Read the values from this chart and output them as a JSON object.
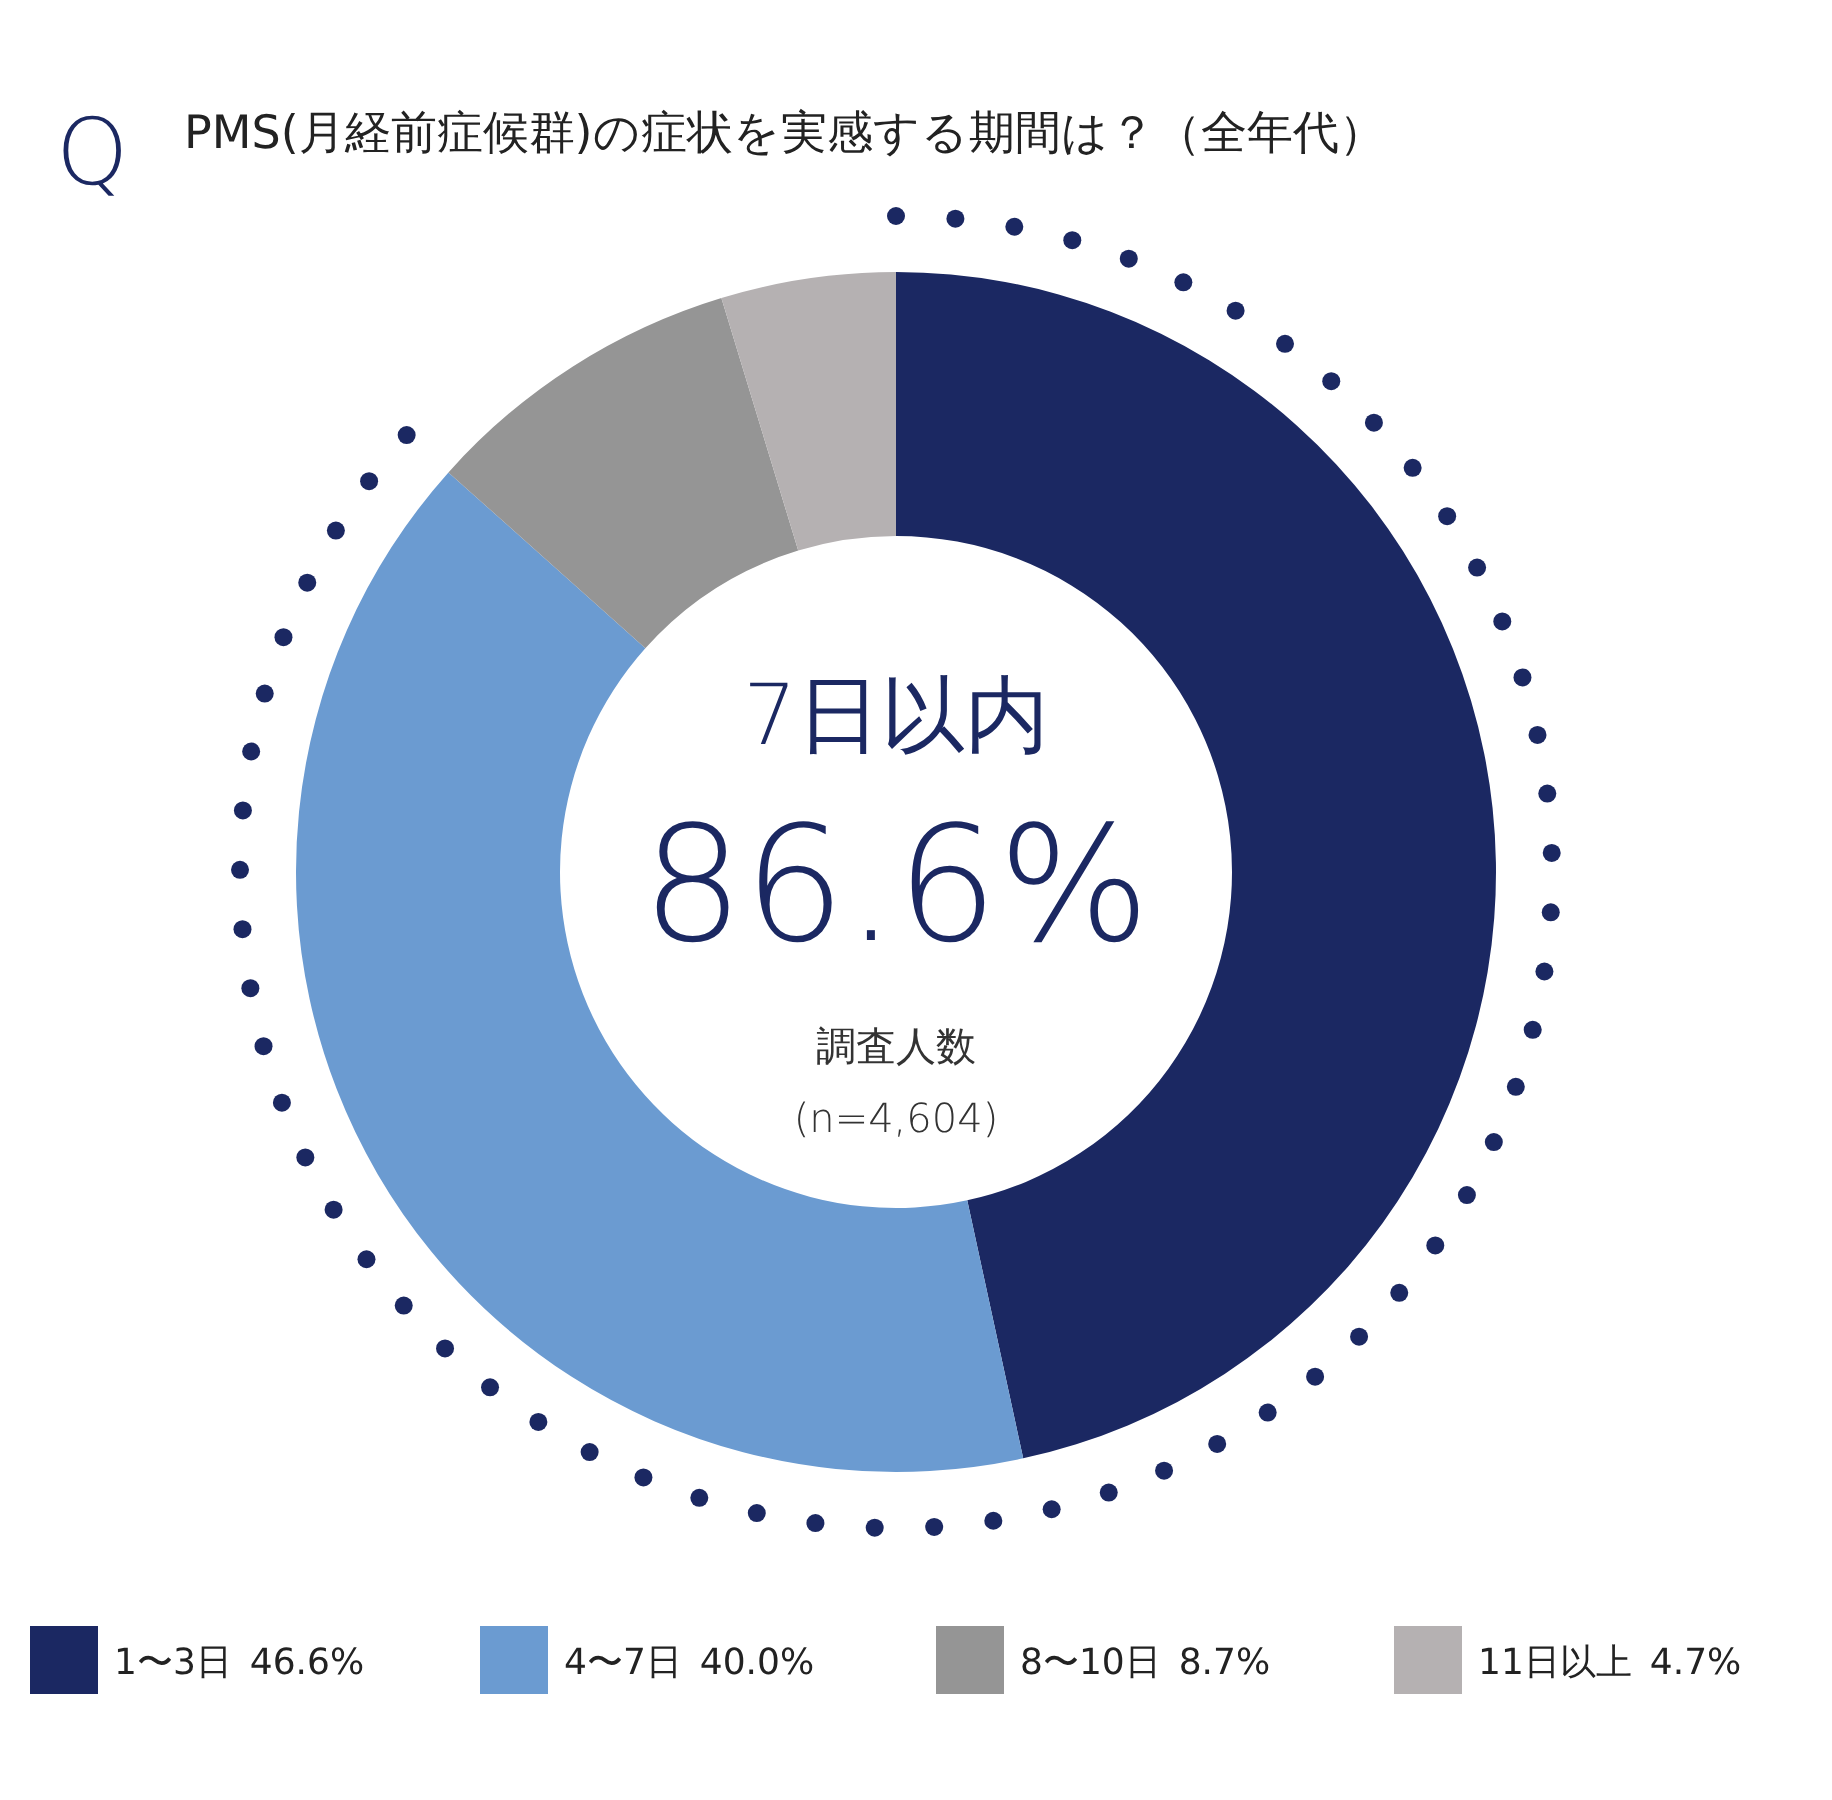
{
  "chart_data": {
    "type": "donut",
    "title": "PMS(月経前症候群)の症状を実感する期間は？（全年代）",
    "annotations": [
      "Q",
      "7日以内",
      "86.6%",
      "調査人数",
      "(n=4,604)"
    ],
    "categories": [
      "1〜3日",
      "4〜7日",
      "8〜10日",
      "11日以上"
    ],
    "values": [
      46.6,
      40.0,
      8.7,
      4.7
    ],
    "value_labels": [
      "46.6%",
      "40.0%",
      "8.7%",
      "4.7%"
    ],
    "colors": [
      "#1b2862",
      "#6b9bd1",
      "#959595",
      "#b5b1b2"
    ],
    "legend": "bottom"
  }
}
